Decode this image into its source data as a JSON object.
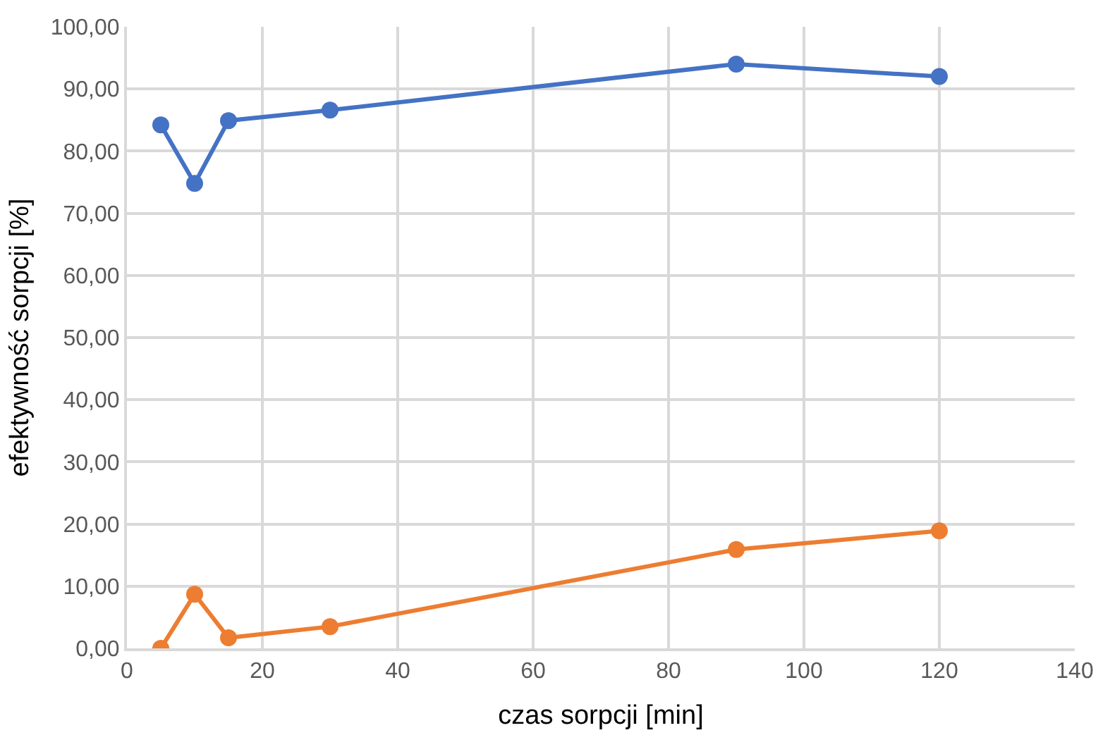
{
  "chart_data": {
    "type": "line",
    "xlabel": "czas sorpcji [min]",
    "ylabel": "efektywność sorpcji [%]",
    "x": [
      5,
      10,
      15,
      30,
      90,
      120
    ],
    "series": [
      {
        "color": "#4472c4",
        "values": [
          84.2,
          74.8,
          84.9,
          86.6,
          94.0,
          92.0
        ]
      },
      {
        "color": "#ed7d31",
        "values": [
          0,
          8.7,
          1.7,
          3.5,
          15.9,
          18.9
        ]
      }
    ],
    "xlim": [
      0,
      140
    ],
    "xticks": [
      0,
      20,
      40,
      60,
      80,
      100,
      120,
      140
    ],
    "ylim": [
      0,
      100
    ],
    "yticks": [
      {
        "value": 0,
        "label": "0,00"
      },
      {
        "value": 10,
        "label": "10,00"
      },
      {
        "value": 20,
        "label": "20,00"
      },
      {
        "value": 30,
        "label": "30,00"
      },
      {
        "value": 40,
        "label": "40,00"
      },
      {
        "value": 50,
        "label": "50,00"
      },
      {
        "value": 60,
        "label": "60,00"
      },
      {
        "value": 70,
        "label": "70,00"
      },
      {
        "value": 80,
        "label": "80,00"
      },
      {
        "value": 90,
        "label": "90,00"
      },
      {
        "value": 100,
        "label": "100,00"
      }
    ],
    "grid": true,
    "marker": "circle",
    "line_style": "solid"
  }
}
